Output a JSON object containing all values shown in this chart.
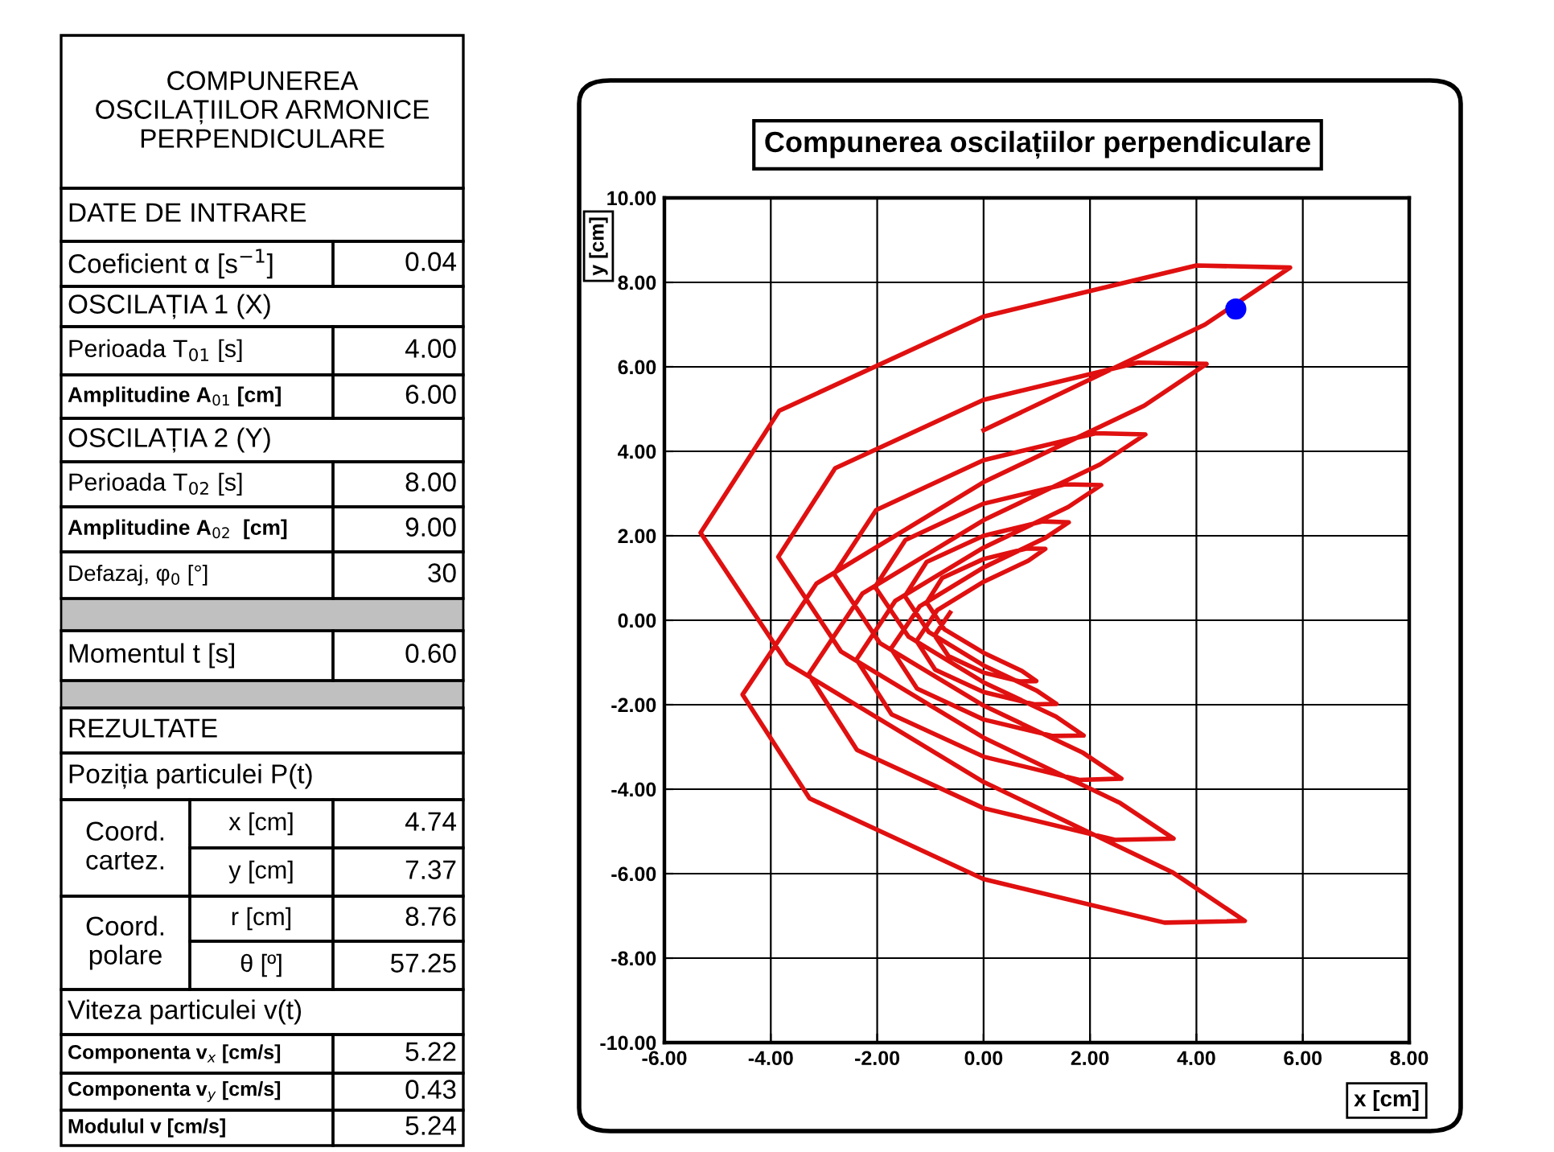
{
  "chart_data": {
    "type": "line",
    "title": "Compunerea oscilațiilor perpendiculare",
    "xlabel": "x [cm]",
    "ylabel": "y [cm]",
    "xlim": [
      -6,
      8
    ],
    "ylim": [
      -10,
      10
    ],
    "xticks": [
      {
        "value": -6,
        "label": "-6.00"
      },
      {
        "value": -4,
        "label": "-4.00"
      },
      {
        "value": -2,
        "label": "-2.00"
      },
      {
        "value": 0,
        "label": "0.00"
      },
      {
        "value": 2,
        "label": "2.00"
      },
      {
        "value": 4,
        "label": "4.00"
      },
      {
        "value": 6,
        "label": "6.00"
      },
      {
        "value": 8,
        "label": "8.00"
      }
    ],
    "yticks": [
      {
        "value": -10,
        "label": "-10.00"
      },
      {
        "value": -8,
        "label": "-8.00"
      },
      {
        "value": -6,
        "label": "-6.00"
      },
      {
        "value": -4,
        "label": "-4.00"
      },
      {
        "value": -2,
        "label": "-2.00"
      },
      {
        "value": 0,
        "label": "0.00"
      },
      {
        "value": 2,
        "label": "2.00"
      },
      {
        "value": 4,
        "label": "4.00"
      },
      {
        "value": 6,
        "label": "6.00"
      },
      {
        "value": 8,
        "label": "8.00"
      },
      {
        "value": 10,
        "label": "10.00"
      }
    ],
    "grid": true,
    "series": [
      {
        "type": "line",
        "color": "#e01010",
        "line_style": "solid",
        "x": [
          0,
          4.16,
          5.76,
          4.0,
          0,
          -3.84,
          -5.32,
          -3.69,
          0,
          3.54,
          4.91,
          3.4,
          0,
          -3.27,
          -4.53,
          -3.14,
          0,
          3.02,
          4.19,
          2.9,
          0,
          -2.79,
          -3.86,
          -2.68,
          0,
          2.57,
          3.57,
          2.47,
          0,
          -2.38,
          -3.29,
          -2.28,
          0,
          2.19,
          3.04,
          2.11,
          0,
          -2.02,
          -2.81,
          -1.95,
          0,
          1.87,
          2.59,
          1.8,
          0,
          -1.73,
          -2.39,
          -1.66,
          0,
          1.59,
          2.21,
          1.53,
          0,
          -1.47,
          -2.04,
          -1.41,
          0,
          1.36,
          1.88,
          1.3,
          0,
          -1.25,
          -1.74,
          -1.2,
          0,
          1.16,
          1.6,
          1.11,
          0,
          -1.07,
          -1.48,
          -1.03,
          0,
          0.99,
          1.37,
          0.95,
          0,
          -0.91,
          -1.26,
          -0.87,
          0,
          0.84,
          1.16,
          0.81,
          0,
          -0.78,
          -1.07,
          -0.74,
          0,
          0.72,
          0.99,
          0.69,
          0,
          -0.66,
          -0.92,
          -0.63
        ],
        "values": [
          4.5,
          7.0,
          8.35,
          8.4,
          7.19,
          4.96,
          2.07,
          -1.02,
          -3.83,
          -5.96,
          -7.12,
          -7.16,
          -6.13,
          -4.22,
          -1.76,
          0.87,
          3.27,
          5.08,
          6.07,
          6.1,
          5.22,
          3.6,
          1.5,
          -0.74,
          -2.78,
          -4.33,
          -5.17,
          -5.2,
          -4.45,
          -3.07,
          -1.28,
          0.63,
          2.37,
          3.69,
          4.4,
          4.43,
          3.79,
          2.61,
          1.09,
          -0.54,
          -2.02,
          -3.14,
          -3.75,
          -3.78,
          -3.23,
          -2.23,
          -0.93,
          0.46,
          1.72,
          2.68,
          3.2,
          3.22,
          2.76,
          1.9,
          0.79,
          -0.39,
          -1.47,
          -2.28,
          -2.73,
          -2.74,
          -2.35,
          -1.62,
          -0.67,
          0.33,
          1.25,
          1.95,
          2.32,
          2.34,
          2.0,
          1.38,
          0.57,
          -0.28,
          -1.07,
          -1.66,
          -1.98,
          -1.99,
          -1.7,
          -1.17,
          -0.49,
          0.24,
          0.91,
          1.41,
          1.69,
          1.7,
          1.45,
          1.0,
          0.42,
          -0.21,
          -0.77,
          -1.2,
          -1.44,
          -1.45,
          -1.24,
          -0.85,
          -0.36,
          0.18
        ]
      },
      {
        "type": "scatter",
        "color": "#0000ff",
        "marker": "circle",
        "x": [
          4.74
        ],
        "values": [
          7.37
        ]
      }
    ],
    "annotations": [
      "COMPUNEREA\nOSCILAȚIILOR ARMONICE\nPERPENDICULARE",
      "DATE DE INTRARE",
      "Coeficient α [s$^{−1}$]",
      "0.04",
      "OSCILAȚIA 1 (X)",
      "Perioada T$_{01}$ [s]",
      "4.00",
      "Amplitudine A$_{01}$ [cm]",
      "6.00",
      "OSCILAȚIA 2 (Y)",
      "Perioada T$_{02}$ [s]",
      "8.00",
      "Amplitudine A$_{02}$  [cm]",
      "9.00",
      "Defazaj, φ$_{0}$ [°]",
      "30",
      "Momentul t [s]",
      "0.60",
      "REZULTATE",
      "Poziția particulei P(t)",
      "Coord.\ncartez.",
      "x [cm]",
      "4.74",
      "y [cm]",
      "7.37",
      "Coord.\npolare",
      "r [cm]",
      "8.76",
      "θ [º]",
      "57.25",
      "Viteza particulei v(t)",
      "Componenta v$_{x}$ [cm/s]",
      "5.22",
      "Componenta v$_{y}$ [cm/s]",
      "0.43",
      "Modulul v [cm/s]",
      "5.24"
    ]
  }
}
